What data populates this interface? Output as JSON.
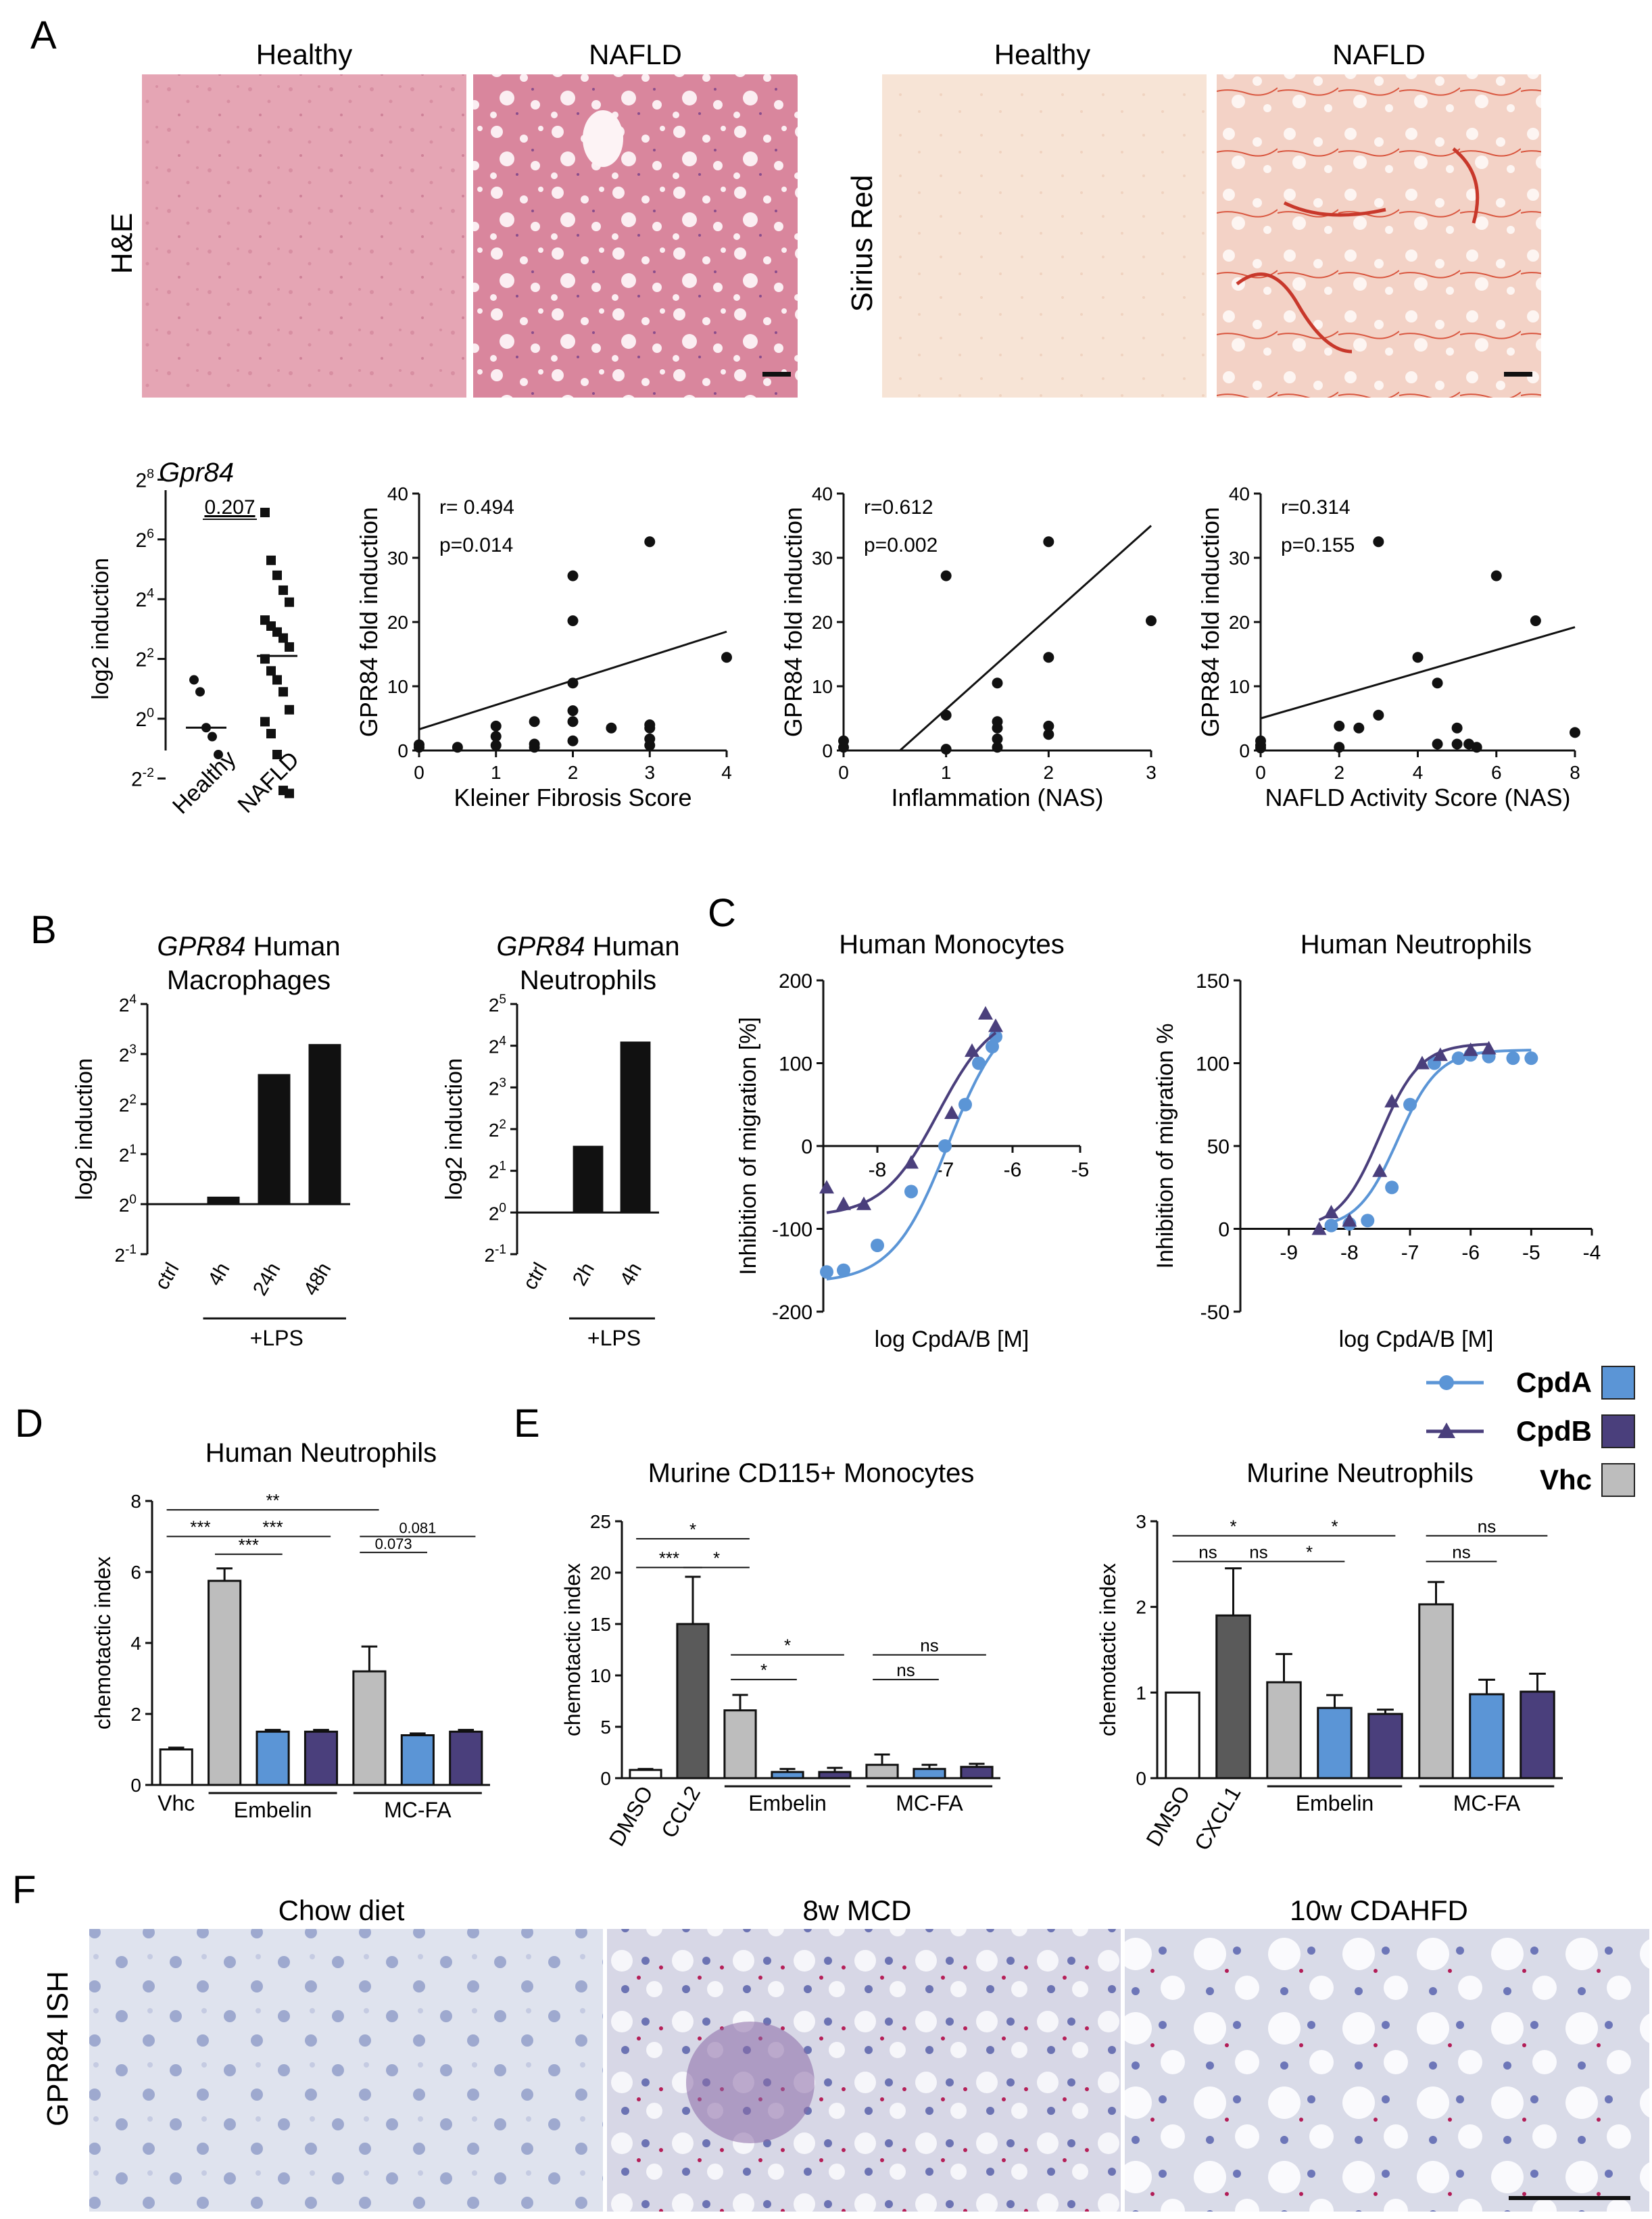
{
  "panel_letters": {
    "A": "A",
    "B": "B",
    "C": "C",
    "D": "D",
    "E": "E",
    "F": "F"
  },
  "panelA": {
    "he": {
      "healthy": "Healthy",
      "nafld": "NAFLD",
      "ylabel": "H&E"
    },
    "sr": {
      "healthy": "Healthy",
      "nafld": "NAFLD",
      "ylabel": "Sirius Red"
    },
    "gpr84_title": "Gpr84",
    "gpr84_pvalue": "0.207",
    "gpr84_ylabel": "log2 induction",
    "gpr84_yticks": [
      {
        "base": "2",
        "exp": "8",
        "e": 8
      },
      {
        "base": "2",
        "exp": "6",
        "e": 6
      },
      {
        "base": "2",
        "exp": "4",
        "e": 4
      },
      {
        "base": "2",
        "exp": "2",
        "e": 2
      },
      {
        "base": "2",
        "exp": "0",
        "e": 0
      },
      {
        "base": "2",
        "exp": "-2",
        "e": -2
      }
    ],
    "gpr84_groups": [
      "Healthy",
      "NAFLD"
    ]
  },
  "chart_data": [
    {
      "id": "A_gpr84_scatter",
      "type": "scatter",
      "title": "Gpr84",
      "ylabel": "log2 induction",
      "ylim_exp": [
        -2.5,
        8
      ],
      "series": [
        {
          "name": "Healthy",
          "marker": "circle",
          "exp_values": [
            1.3,
            0.9,
            -0.3,
            -0.6,
            -1.2
          ],
          "median": -0.3
        },
        {
          "name": "NAFLD",
          "marker": "square",
          "exp_values": [
            6.9,
            5.3,
            4.8,
            4.3,
            3.9,
            3.3,
            3.1,
            2.9,
            2.7,
            2.4,
            2.0,
            1.6,
            1.3,
            0.9,
            0.3,
            -0.1,
            -0.5,
            -1.2,
            -2.4,
            -2.5
          ],
          "median": 2.1
        }
      ]
    },
    {
      "id": "A_kleiner",
      "type": "scatter",
      "xlabel": "Kleiner Fibrosis Score",
      "ylabel": "GPR84 fold induction",
      "xlim": [
        0,
        4
      ],
      "ylim": [
        0,
        40
      ],
      "xticks": [
        0,
        1,
        2,
        3,
        4
      ],
      "yticks": [
        0,
        10,
        20,
        30,
        40
      ],
      "annotation": [
        "r= 0.494",
        "p=0.014"
      ],
      "fit": {
        "x1": 0,
        "y1": 3.3,
        "x2": 4,
        "y2": 18.5
      },
      "points": [
        [
          0,
          0.5
        ],
        [
          0,
          0.9
        ],
        [
          0.5,
          0.5
        ],
        [
          1,
          0.8
        ],
        [
          1,
          2.2
        ],
        [
          1,
          3.8
        ],
        [
          1.5,
          0.5
        ],
        [
          1.5,
          1.0
        ],
        [
          1.5,
          4.5
        ],
        [
          2,
          1.5
        ],
        [
          2,
          4.5
        ],
        [
          2,
          6.2
        ],
        [
          2,
          10.5
        ],
        [
          2,
          20.2
        ],
        [
          2,
          27.2
        ],
        [
          2.5,
          3.5
        ],
        [
          3,
          0.8
        ],
        [
          3,
          1.8
        ],
        [
          3,
          3.5
        ],
        [
          3,
          4.0
        ],
        [
          3,
          32.5
        ],
        [
          4,
          14.5
        ]
      ]
    },
    {
      "id": "A_inflammation",
      "type": "scatter",
      "xlabel": "Inflammation (NAS)",
      "ylabel": "GPR84 fold induction",
      "xlim": [
        0,
        3
      ],
      "ylim": [
        0,
        40
      ],
      "xticks": [
        0,
        1,
        2,
        3
      ],
      "yticks": [
        0,
        10,
        20,
        30,
        40
      ],
      "annotation": [
        "r=0.612",
        "p=0.002"
      ],
      "fit": {
        "x1": 0.55,
        "y1": 0,
        "x2": 3,
        "y2": 35
      },
      "points": [
        [
          0,
          0.5
        ],
        [
          0,
          1.5
        ],
        [
          1,
          0.2
        ],
        [
          1,
          5.5
        ],
        [
          1,
          27.2
        ],
        [
          1.5,
          0.5
        ],
        [
          1.5,
          1.8
        ],
        [
          1.5,
          3.5
        ],
        [
          1.5,
          4.5
        ],
        [
          1.5,
          10.5
        ],
        [
          2,
          2.5
        ],
        [
          2,
          3.8
        ],
        [
          2,
          14.5
        ],
        [
          2,
          32.5
        ],
        [
          3,
          20.2
        ]
      ]
    },
    {
      "id": "A_nas",
      "type": "scatter",
      "xlabel": "NAFLD Activity Score (NAS)",
      "ylabel": "GPR84 fold induction",
      "xlim": [
        0,
        8
      ],
      "ylim": [
        0,
        40
      ],
      "xticks": [
        0,
        2,
        4,
        6,
        8
      ],
      "yticks": [
        0,
        10,
        20,
        30,
        40
      ],
      "annotation": [
        "r=0.314",
        "p=0.155"
      ],
      "fit": {
        "x1": 0,
        "y1": 5,
        "x2": 8,
        "y2": 19.2
      },
      "points": [
        [
          0,
          0.4
        ],
        [
          0,
          0.8
        ],
        [
          0,
          1.5
        ],
        [
          2,
          0.5
        ],
        [
          2,
          3.8
        ],
        [
          2.5,
          3.5
        ],
        [
          3,
          5.5
        ],
        [
          3,
          32.5
        ],
        [
          4,
          14.5
        ],
        [
          4.5,
          1
        ],
        [
          4.5,
          10.5
        ],
        [
          5,
          1
        ],
        [
          5,
          3.5
        ],
        [
          5.3,
          1
        ],
        [
          5.5,
          0.5
        ],
        [
          6,
          27.2
        ],
        [
          7,
          20.2
        ],
        [
          8,
          2.8
        ]
      ]
    },
    {
      "id": "B_macrophages",
      "type": "bar",
      "title_italic": "GPR84",
      "title_rest": " Human",
      "title_line2": "Macrophages",
      "ylabel": "log2 induction",
      "categories": [
        "ctrl",
        "4h",
        "24h",
        "48h"
      ],
      "exp_values": [
        0,
        0.15,
        2.6,
        3.2
      ],
      "yticks_exp": [
        "4",
        "3",
        "2",
        "1",
        "0",
        "-1"
      ],
      "ylim_exp": [
        -1,
        4
      ],
      "group_label": "+LPS"
    },
    {
      "id": "B_neutrophils",
      "type": "bar",
      "title_italic": "GPR84",
      "title_rest": " Human",
      "title_line2": "Neutrophils",
      "ylabel": "log2 induction",
      "categories": [
        "ctrl",
        "2h",
        "4h"
      ],
      "exp_values": [
        0,
        1.6,
        4.1
      ],
      "yticks_exp": [
        "5",
        "4",
        "3",
        "2",
        "1",
        "0",
        "-1"
      ],
      "ylim_exp": [
        -1,
        5
      ],
      "group_label": "+LPS"
    },
    {
      "id": "C_monocytes",
      "type": "line",
      "title": "Human Monocytes",
      "xlabel": "log CpdA/B [M]",
      "ylabel": "Inhibition of migration [%]",
      "xlim": [
        -8.8,
        -5
      ],
      "ylim": [
        -200,
        200
      ],
      "xticks": [
        -8,
        -7,
        -6,
        -5
      ],
      "yticks": [
        -200,
        -100,
        0,
        100,
        200
      ],
      "series": [
        {
          "name": "CpdA",
          "color": "#5b95d6",
          "marker": "circle",
          "points": [
            [
              -8.75,
              -152
            ],
            [
              -8.5,
              -150
            ],
            [
              -8.0,
              -120
            ],
            [
              -7.5,
              -55
            ],
            [
              -7.0,
              0
            ],
            [
              -6.7,
              50
            ],
            [
              -6.5,
              100
            ],
            [
              -6.3,
              120
            ],
            [
              -6.25,
              132
            ]
          ],
          "curve": {
            "bottom": -165,
            "top": 170,
            "logec50": -6.95,
            "hill": 1.05
          }
        },
        {
          "name": "CpdB",
          "color": "#4a3f7c",
          "marker": "triangle",
          "points": [
            [
              -8.75,
              -50
            ],
            [
              -8.5,
              -70
            ],
            [
              -8.2,
              -70
            ],
            [
              -7.5,
              -20
            ],
            [
              -6.9,
              40
            ],
            [
              -6.6,
              115
            ],
            [
              -6.4,
              160
            ],
            [
              -6.25,
              145
            ]
          ],
          "curve": {
            "bottom": -85,
            "top": 165,
            "logec50": -7.1,
            "hill": 1.05
          }
        }
      ]
    },
    {
      "id": "C_neutrophils",
      "type": "line",
      "title": "Human Neutrophils",
      "xlabel": "log CpdA/B [M]",
      "ylabel": "Inhibition of migration %",
      "xlim": [
        -9.8,
        -4
      ],
      "ylim": [
        -50,
        150
      ],
      "xticks": [
        -9,
        -8,
        -7,
        -6,
        -5,
        -4
      ],
      "yticks": [
        -50,
        0,
        50,
        100,
        150
      ],
      "series": [
        {
          "name": "CpdA",
          "color": "#5b95d6",
          "marker": "circle",
          "points": [
            [
              -8.3,
              2
            ],
            [
              -8.0,
              3
            ],
            [
              -7.7,
              5
            ],
            [
              -7.3,
              25
            ],
            [
              -7.0,
              75
            ],
            [
              -6.6,
              100
            ],
            [
              -6.2,
              103
            ],
            [
              -6.0,
              105
            ],
            [
              -5.7,
              104
            ],
            [
              -5.3,
              103
            ],
            [
              -5.0,
              103
            ]
          ],
          "curve": {
            "bottom": 0,
            "top": 108,
            "logec50": -7.2,
            "hill": 1.3
          }
        },
        {
          "name": "CpdB",
          "color": "#4a3f7c",
          "marker": "triangle",
          "points": [
            [
              -8.5,
              0
            ],
            [
              -8.3,
              10
            ],
            [
              -8.0,
              5
            ],
            [
              -7.5,
              35
            ],
            [
              -7.3,
              77
            ],
            [
              -6.8,
              100
            ],
            [
              -6.5,
              105
            ],
            [
              -6.0,
              108
            ],
            [
              -5.7,
              109
            ]
          ],
          "curve": {
            "bottom": 0,
            "top": 112,
            "logec50": -7.5,
            "hill": 1.3
          }
        }
      ]
    },
    {
      "id": "D_human_neutrophils",
      "type": "bar",
      "title": "Human Neutrophils",
      "ylabel": "chemotactic index",
      "ylim": [
        0,
        8
      ],
      "yticks": [
        0,
        2,
        4,
        6,
        8
      ],
      "bars": [
        {
          "label": "Vhc",
          "value": 1.0,
          "err": 0.05,
          "fill": "#ffffff"
        },
        {
          "label": "",
          "value": 5.75,
          "err": 0.35,
          "fill": "#bdbdbd"
        },
        {
          "label": "",
          "value": 1.5,
          "err": 0.05,
          "fill": "#5b95d6"
        },
        {
          "label": "",
          "value": 1.5,
          "err": 0.05,
          "fill": "#4a3f7c"
        },
        {
          "label": "",
          "value": 3.2,
          "err": 0.7,
          "fill": "#bdbdbd"
        },
        {
          "label": "",
          "value": 1.4,
          "err": 0.05,
          "fill": "#5b95d6"
        },
        {
          "label": "",
          "value": 1.5,
          "err": 0.05,
          "fill": "#4a3f7c"
        }
      ],
      "groups": [
        {
          "label": "Embelin",
          "from": 1,
          "to": 3
        },
        {
          "label": "MC-FA",
          "from": 4,
          "to": 6
        }
      ],
      "sig": [
        {
          "a": 0,
          "b": 4,
          "label": "**",
          "y": 7.75
        },
        {
          "a": 0,
          "b": 1,
          "label": "***",
          "y": 7.0
        },
        {
          "a": 1,
          "b": 3,
          "label": "***",
          "y": 7.0
        },
        {
          "a": 1,
          "b": 2,
          "label": "***",
          "y": 6.5
        },
        {
          "a": 4,
          "b": 6,
          "label": "0.081",
          "y": 7.0
        },
        {
          "a": 4,
          "b": 5,
          "label": "0.073",
          "y": 6.55
        }
      ]
    },
    {
      "id": "E_murine_monocytes",
      "type": "bar",
      "title": "Murine CD115+ Monocytes",
      "ylabel": "chemotactic index",
      "ylim": [
        0,
        25
      ],
      "yticks": [
        0,
        5,
        10,
        15,
        20,
        25
      ],
      "bars": [
        {
          "label": "DMSO",
          "value": 0.8,
          "err": 0.1,
          "fill": "#ffffff"
        },
        {
          "label": "CCL2",
          "value": 15.0,
          "err": 4.6,
          "fill": "#5a5a5a"
        },
        {
          "label": "",
          "value": 6.6,
          "err": 1.5,
          "fill": "#bdbdbd"
        },
        {
          "label": "",
          "value": 0.6,
          "err": 0.3,
          "fill": "#5b95d6"
        },
        {
          "label": "",
          "value": 0.6,
          "err": 0.4,
          "fill": "#4a3f7c"
        },
        {
          "label": "",
          "value": 1.3,
          "err": 1.0,
          "fill": "#bdbdbd"
        },
        {
          "label": "",
          "value": 0.9,
          "err": 0.4,
          "fill": "#5b95d6"
        },
        {
          "label": "",
          "value": 1.1,
          "err": 0.3,
          "fill": "#4a3f7c"
        }
      ],
      "groups": [
        {
          "label": "Embelin",
          "from": 2,
          "to": 4
        },
        {
          "label": "MC-FA",
          "from": 5,
          "to": 7
        }
      ],
      "sig": [
        {
          "a": 0,
          "b": 2,
          "label": "*",
          "y": 23.3
        },
        {
          "a": 0,
          "b": 1,
          "label": "***",
          "y": 20.5
        },
        {
          "a": 1,
          "b": 2,
          "label": "*",
          "y": 20.5
        },
        {
          "a": 2,
          "b": 4,
          "label": "*",
          "y": 12.0
        },
        {
          "a": 2,
          "b": 3,
          "label": "*",
          "y": 9.6
        },
        {
          "a": 5,
          "b": 7,
          "label": "ns",
          "y": 12.0
        },
        {
          "a": 5,
          "b": 6,
          "label": "ns",
          "y": 9.6
        }
      ]
    },
    {
      "id": "E_murine_neutrophils",
      "type": "bar",
      "title": "Murine Neutrophils",
      "ylabel": "chemotactic index",
      "ylim": [
        0,
        3
      ],
      "yticks": [
        0,
        1,
        2,
        3
      ],
      "bars": [
        {
          "label": "DMSO",
          "value": 1.0,
          "err": 0.0,
          "fill": "#ffffff"
        },
        {
          "label": "CXCL1",
          "value": 1.9,
          "err": 0.55,
          "fill": "#5a5a5a"
        },
        {
          "label": "",
          "value": 1.12,
          "err": 0.33,
          "fill": "#bdbdbd"
        },
        {
          "label": "",
          "value": 0.82,
          "err": 0.15,
          "fill": "#5b95d6"
        },
        {
          "label": "",
          "value": 0.75,
          "err": 0.05,
          "fill": "#4a3f7c"
        },
        {
          "label": "",
          "value": 2.03,
          "err": 0.26,
          "fill": "#bdbdbd"
        },
        {
          "label": "",
          "value": 0.98,
          "err": 0.17,
          "fill": "#5b95d6"
        },
        {
          "label": "",
          "value": 1.01,
          "err": 0.21,
          "fill": "#4a3f7c"
        }
      ],
      "groups": [
        {
          "label": "Embelin",
          "from": 2,
          "to": 4
        },
        {
          "label": "MC-FA",
          "from": 5,
          "to": 7
        }
      ],
      "sig": [
        {
          "a": 0,
          "b": 2,
          "label": "*",
          "y": 2.83
        },
        {
          "a": 2,
          "b": 4,
          "label": "*",
          "y": 2.83
        },
        {
          "a": 0,
          "b": 1,
          "label": "ns",
          "y": 2.53
        },
        {
          "a": 1,
          "b": 2,
          "label": "ns",
          "y": 2.53
        },
        {
          "a": 2,
          "b": 3,
          "label": "*",
          "y": 2.53
        },
        {
          "a": 5,
          "b": 7,
          "label": "ns",
          "y": 2.83
        },
        {
          "a": 5,
          "b": 6,
          "label": "ns",
          "y": 2.53
        }
      ]
    }
  ],
  "legend": [
    {
      "label": "CpdA",
      "color": "#5b95d6",
      "marker": "circle"
    },
    {
      "label": "CpdB",
      "color": "#4a3f7c",
      "marker": "triangle"
    },
    {
      "label": "Vhc",
      "color": "#bdbdbd",
      "marker": "none"
    }
  ],
  "panelF": {
    "titles": [
      "Chow diet",
      "8w MCD",
      "10w CDAHFD"
    ],
    "ylabel": "GPR84 ISH"
  }
}
